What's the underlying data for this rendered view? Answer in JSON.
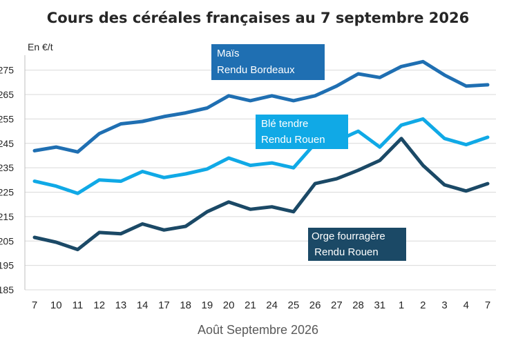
{
  "chart_data": {
    "type": "line",
    "title": "Cours des céréales françaises au 7 septembre 2026",
    "ylabel": "En €/t",
    "xlabel": "Août  Septembre 2026",
    "ylim": [
      185,
      280
    ],
    "yticks": [
      185,
      195,
      205,
      215,
      225,
      235,
      245,
      255,
      265,
      275
    ],
    "ytick_labels": [
      "185",
      "195",
      "205",
      "215",
      "225",
      "235",
      "245",
      "255",
      "265",
      "275"
    ],
    "grid": "horizontal",
    "categories": [
      "7",
      "10",
      "11",
      "12",
      "13",
      "14",
      "17",
      "18",
      "19",
      "20",
      "21",
      "24",
      "25",
      "26",
      "27",
      "28",
      "31",
      "1",
      "2",
      "3",
      "4",
      "7"
    ],
    "series": [
      {
        "name": "Maïs Rendu Bordeaux",
        "label_lines": [
          "Maïs",
          "Rendu Bordeaux"
        ],
        "color": "#1f6fb2",
        "values": [
          242,
          243.5,
          241.5,
          249,
          253,
          254,
          256,
          257.5,
          259.5,
          264.5,
          262.5,
          264.5,
          262.5,
          264.5,
          268.5,
          273.5,
          272,
          276.5,
          278.5,
          273,
          268.5,
          269
        ]
      },
      {
        "name": "Blé tendre Rendu Rouen",
        "label_lines": [
          "Blé tendre",
          "Rendu Rouen"
        ],
        "color": "#10a9e6",
        "values": [
          229.5,
          227.5,
          224.5,
          230,
          229.5,
          233.5,
          231,
          232.5,
          234.5,
          239,
          236,
          237,
          235,
          245,
          246,
          250,
          243.5,
          252.5,
          255,
          247,
          244.5,
          247.5
        ]
      },
      {
        "name": "Orge fourragère Rendu Rouen",
        "label_lines": [
          "Orge fourragère",
          " Rendu Rouen"
        ],
        "color": "#1b4966",
        "values": [
          206.5,
          204.5,
          201.5,
          208.5,
          208,
          212,
          209.5,
          211,
          217,
          221,
          218,
          219,
          217,
          228.5,
          230.5,
          234,
          238,
          247,
          236,
          228,
          225.5,
          228.5
        ]
      }
    ]
  }
}
